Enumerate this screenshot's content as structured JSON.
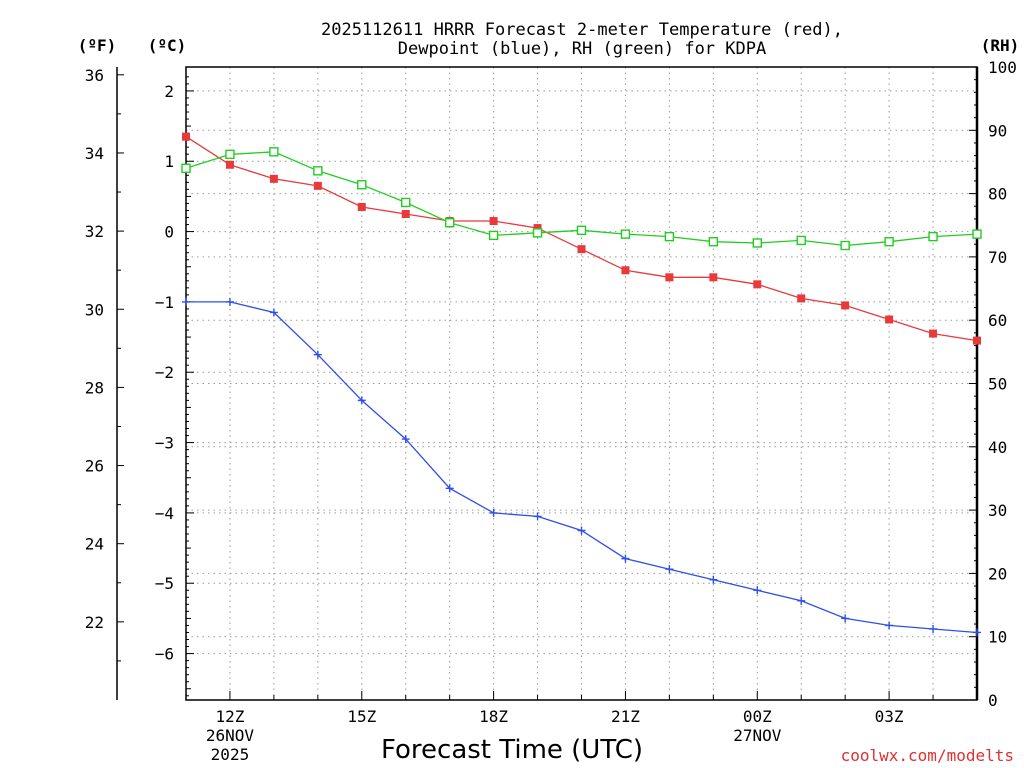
{
  "chart_data": {
    "type": "line",
    "title_line1": "2025112611 HRRR Forecast 2-meter Temperature (red),",
    "title_line2": "Dewpoint (blue), RH (green) for KDPA",
    "xlabel": "Forecast Time (UTC)",
    "credit": "coolwx.com/modelts",
    "units": {
      "fahrenheit": "(ºF)",
      "celsius": "(ºC)",
      "rh": "(RH)"
    },
    "x_hours": [
      11,
      12,
      13,
      14,
      15,
      16,
      17,
      18,
      19,
      20,
      21,
      22,
      23,
      24,
      25,
      26,
      27,
      28,
      29
    ],
    "x_range": [
      11,
      29
    ],
    "x_ticks": [
      {
        "hour": 12,
        "label": "12Z",
        "date": "26NOV",
        "year": "2025"
      },
      {
        "hour": 15,
        "label": "15Z",
        "date": "",
        "year": ""
      },
      {
        "hour": 18,
        "label": "18Z",
        "date": "",
        "year": ""
      },
      {
        "hour": 21,
        "label": "21Z",
        "date": "",
        "year": ""
      },
      {
        "hour": 24,
        "label": "00Z",
        "date": "27NOV",
        "year": ""
      },
      {
        "hour": 27,
        "label": "03Z",
        "date": "",
        "year": ""
      }
    ],
    "celsius_range": [
      -6.66,
      2.34
    ],
    "celsius_ticks": [
      2,
      1,
      0,
      -1,
      -2,
      -3,
      -4,
      -5,
      -6
    ],
    "fahrenheit_range": [
      20.0,
      36.2
    ],
    "fahrenheit_ticks": [
      36,
      34,
      32,
      30,
      28,
      26,
      24,
      22
    ],
    "rh_range": [
      0,
      100
    ],
    "rh_ticks": [
      0,
      10,
      20,
      30,
      40,
      50,
      60,
      70,
      80,
      90,
      100
    ],
    "series": [
      {
        "name": "Temperature",
        "axis": "celsius",
        "color": "#e83a3a",
        "marker": "filled-square",
        "values": [
          1.35,
          0.95,
          0.75,
          0.65,
          0.35,
          0.25,
          0.15,
          0.15,
          0.05,
          -0.25,
          -0.55,
          -0.65,
          -0.65,
          -0.75,
          -0.95,
          -1.05,
          -1.25,
          -1.45,
          -1.55
        ]
      },
      {
        "name": "Dewpoint",
        "axis": "celsius",
        "color": "#2f4fe8",
        "marker": "plus",
        "values": [
          -1.0,
          -1.0,
          -1.15,
          -1.75,
          -2.4,
          -2.95,
          -3.65,
          -4.0,
          -4.05,
          -4.25,
          -4.65,
          -4.8,
          -4.95,
          -5.1,
          -5.25,
          -5.5,
          -5.6,
          -5.65,
          -5.7
        ]
      },
      {
        "name": "RH",
        "axis": "rh",
        "color": "#22cc22",
        "marker": "open-square",
        "values": [
          84,
          86.2,
          86.6,
          83.6,
          81.4,
          78.6,
          75.4,
          73.4,
          73.8,
          74.2,
          73.6,
          73.2,
          72.4,
          72.2,
          72.6,
          71.8,
          72.4,
          73.2,
          73.6
        ]
      }
    ]
  }
}
